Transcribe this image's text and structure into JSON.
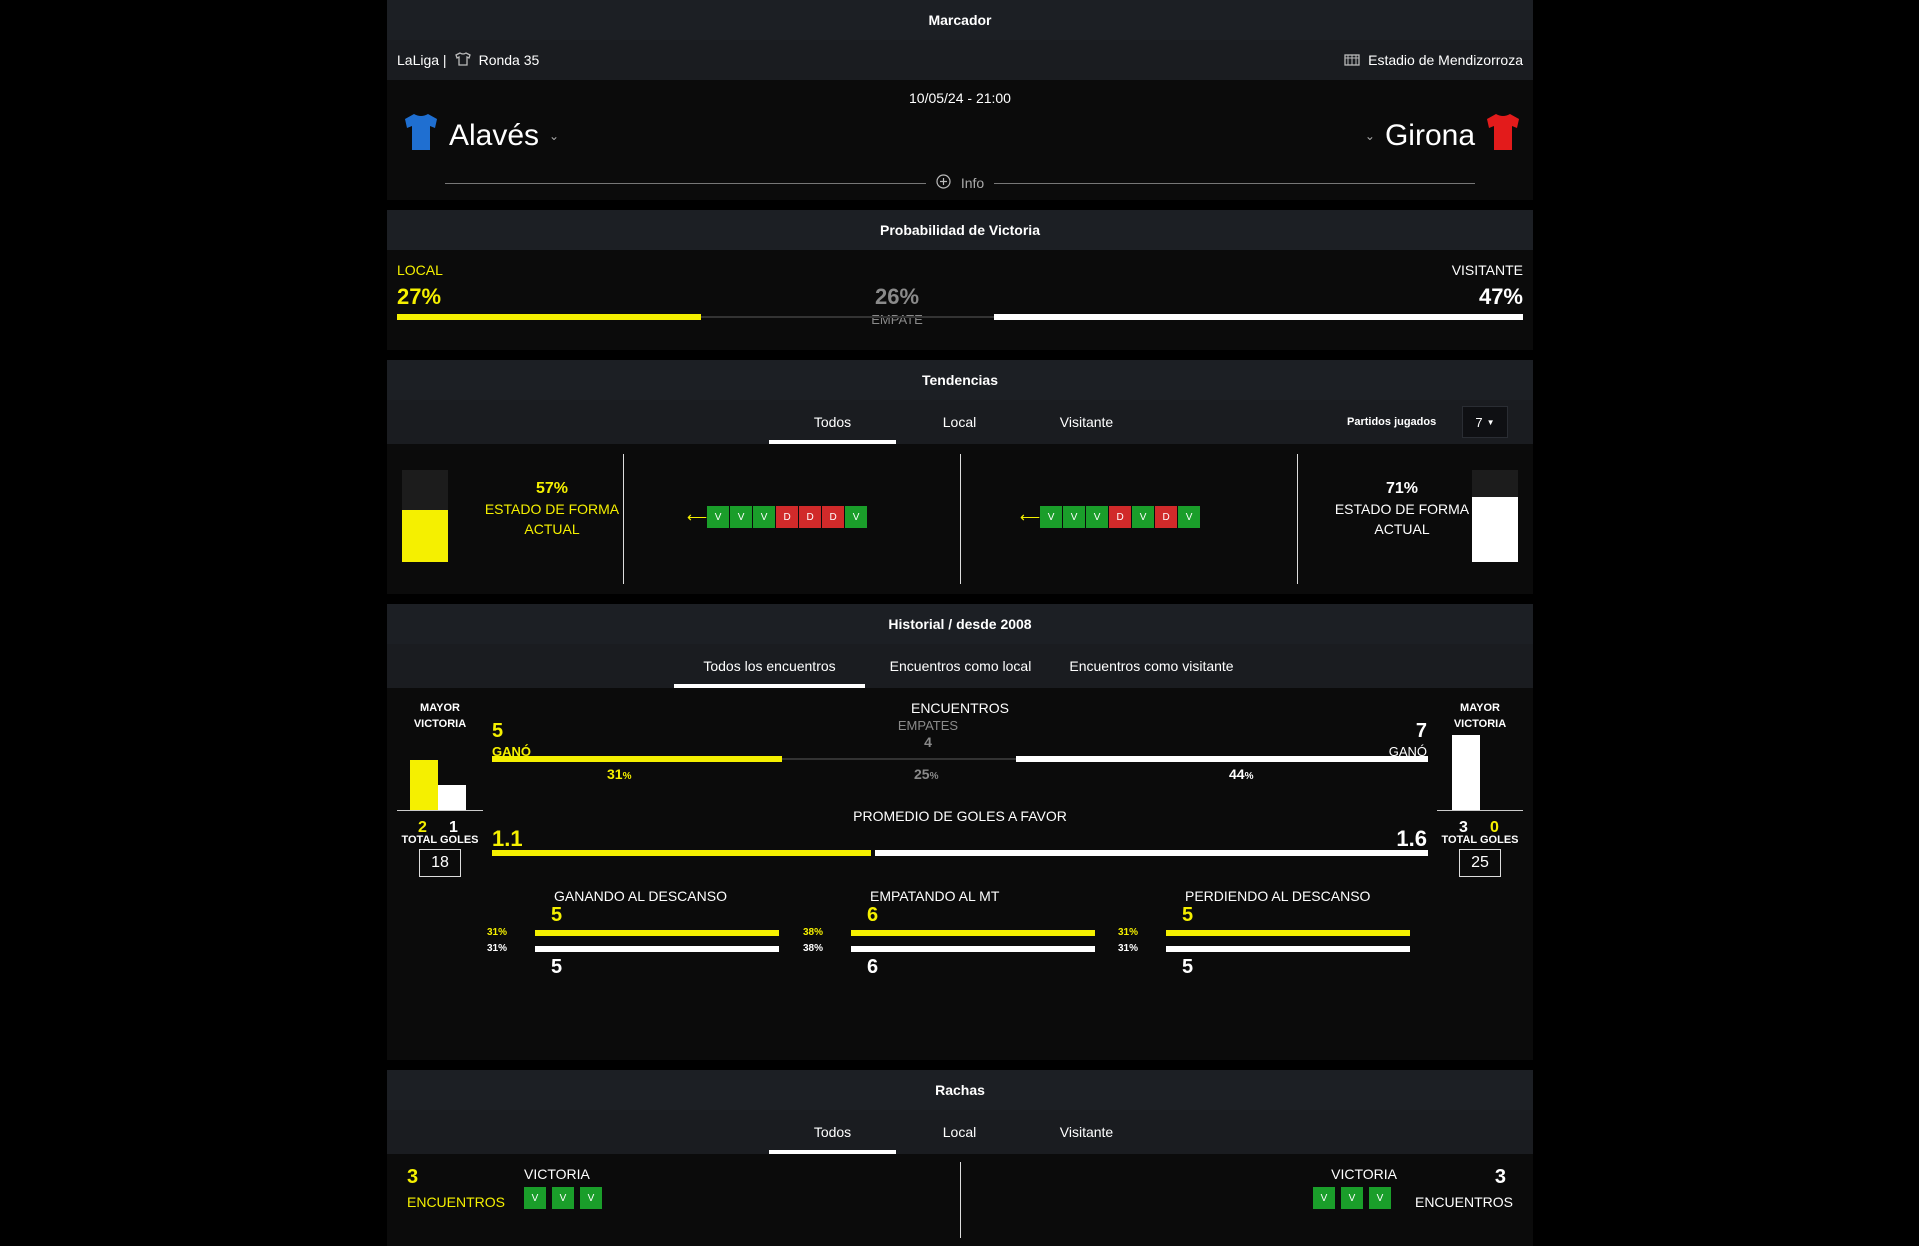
{
  "marcador": {
    "title": "Marcador",
    "league": "LaLiga |",
    "round": "Ronda 35",
    "stadium": "Estadio de Mendizorroza",
    "datetime": "10/05/24 - 21:00",
    "home_team": "Alavés",
    "away_team": "Girona",
    "info_label": "Info",
    "home_color": "#1f6fd1",
    "away_color": "#e31b1b"
  },
  "probabilidad": {
    "title": "Probabilidad de Victoria",
    "local_label": "LOCAL",
    "local_pct": "27%",
    "draw_pct": "26%",
    "draw_label": "EMPATE",
    "away_label": "VISITANTE",
    "away_pct": "47%",
    "local_value": 27,
    "draw_value": 26,
    "away_value": 47
  },
  "tendencias": {
    "title": "Tendencias",
    "tabs": [
      "Todos",
      "Local",
      "Visitante"
    ],
    "played_label": "Partidos jugados",
    "played_value": "7",
    "home_form_pct": "57%",
    "home_form_label": "ESTADO DE FORMA ACTUAL",
    "home_form_value": 57,
    "away_form_pct": "71%",
    "away_form_label": "ESTADO DE FORMA ACTUAL",
    "away_form_value": 71,
    "home_results": [
      "V",
      "V",
      "V",
      "D",
      "D",
      "D",
      "V"
    ],
    "away_results": [
      "V",
      "V",
      "V",
      "D",
      "V",
      "D",
      "V"
    ]
  },
  "historial": {
    "title": "Historial / desde 2008",
    "tabs": [
      "Todos los encuentros",
      "Encuentros como local",
      "Encuentros como visitante"
    ],
    "mayor_victoria": "MAYOR VICTORIA",
    "home_mv": [
      "2",
      "1"
    ],
    "away_mv": [
      "3",
      "0"
    ],
    "encuentros": "ENCUENTROS",
    "home_won": "5",
    "won_label": "GANÓ",
    "empates_label": "EMPATES",
    "empates": "4",
    "away_won": "7",
    "home_pct": "31",
    "draw_pct": "25",
    "away_pct": "44",
    "pct_sign": "%",
    "promedio_label": "PROMEDIO DE GOLES A FAVOR",
    "home_avg": "1.1",
    "away_avg": "1.6",
    "total_goles": "TOTAL GOLES",
    "home_total": "18",
    "away_total": "25",
    "halves": [
      {
        "label": "GANANDO AL DESCANSO",
        "home": "5",
        "away": "5",
        "home_pct": "31%",
        "away_pct": "31%"
      },
      {
        "label": "EMPATANDO AL MT",
        "home": "6",
        "away": "6",
        "home_pct": "38%",
        "away_pct": "38%"
      },
      {
        "label": "PERDIENDO AL DESCANSO",
        "home": "5",
        "away": "5",
        "home_pct": "31%",
        "away_pct": "31%"
      }
    ]
  },
  "rachas": {
    "title": "Rachas",
    "tabs": [
      "Todos",
      "Local",
      "Visitante"
    ],
    "home_count": "3",
    "home_label": "ENCUENTROS",
    "home_type": "VICTORIA",
    "away_count": "3",
    "away_label": "ENCUENTROS",
    "away_type": "VICTORIA",
    "home_results": [
      "V",
      "V",
      "V"
    ],
    "away_results": [
      "V",
      "V",
      "V"
    ]
  }
}
